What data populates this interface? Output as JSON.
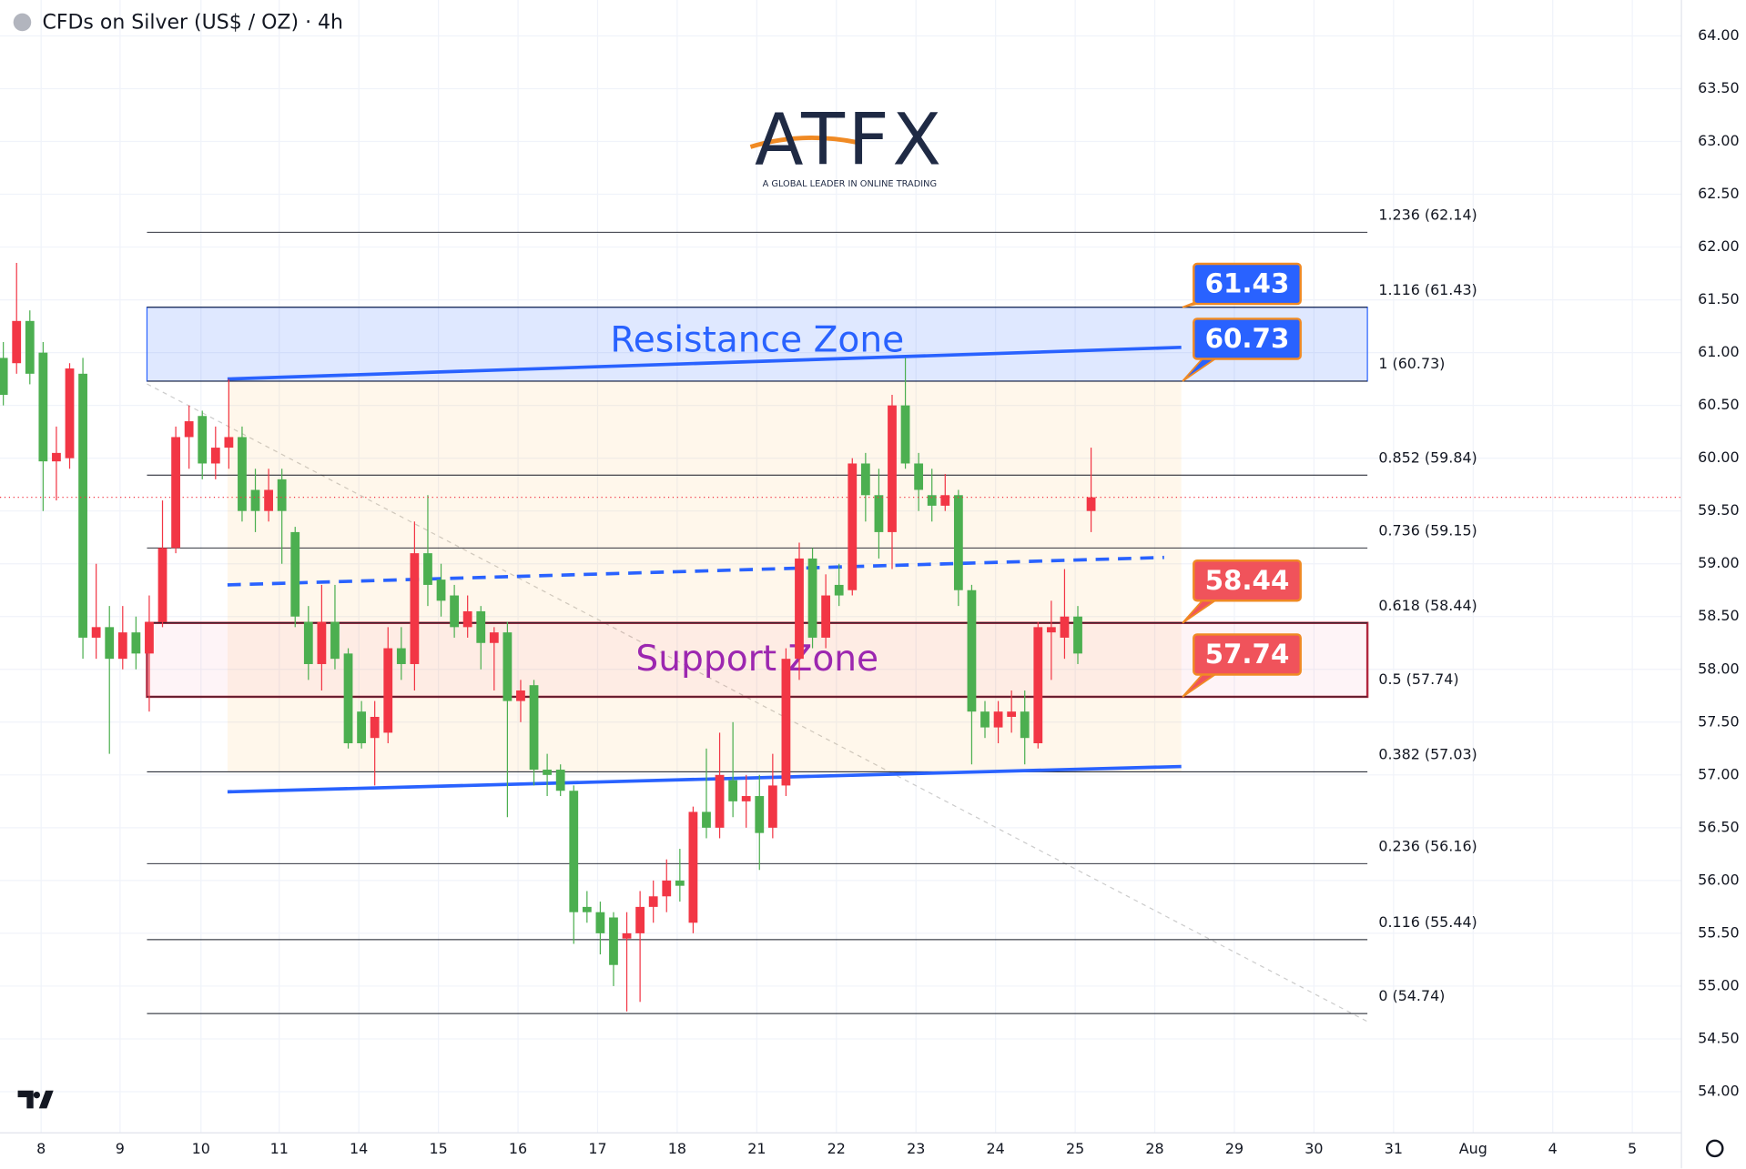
{
  "chart_data": {
    "type": "candlestick",
    "title": "CFDs on Silver (US$ / OZ) · 4h",
    "up_color": "#f23645",
    "down_color": "#4caf50",
    "open": [
      60.95,
      60.9,
      61.3,
      61.0,
      59.97,
      60.0,
      60.8,
      58.3,
      58.4,
      58.1,
      58.35,
      58.15,
      58.45,
      59.15,
      60.2,
      60.4,
      59.95,
      60.1,
      60.2,
      59.7,
      59.5,
      59.8,
      59.3,
      58.45,
      58.05,
      58.45,
      58.15,
      57.6,
      57.35,
      57.4,
      58.2,
      58.05,
      59.1,
      58.85,
      58.7,
      58.4,
      58.55,
      58.25,
      58.35,
      57.7,
      57.85,
      57.05,
      57.05,
      56.85,
      55.75,
      55.7,
      55.65,
      55.45,
      55.5,
      55.75,
      55.85,
      56.0,
      55.6,
      56.65,
      56.5,
      56.95,
      56.75,
      56.8,
      56.5,
      56.9,
      58.1,
      59.05,
      58.3,
      58.8,
      58.75,
      59.95,
      59.65,
      59.3,
      60.5,
      59.95,
      59.65,
      59.55,
      59.65,
      58.75,
      57.6,
      57.45,
      57.55,
      57.6,
      57.3,
      58.35,
      58.3,
      58.5,
      59.5
    ],
    "high": [
      61.1,
      61.85,
      61.4,
      61.1,
      60.3,
      60.9,
      60.95,
      59.0,
      58.6,
      58.6,
      58.5,
      58.7,
      59.6,
      60.3,
      60.5,
      60.45,
      60.3,
      60.75,
      60.3,
      59.9,
      59.9,
      59.9,
      59.35,
      58.6,
      58.8,
      58.8,
      58.2,
      57.7,
      57.7,
      58.4,
      58.4,
      59.4,
      59.65,
      59.0,
      58.8,
      58.7,
      58.6,
      58.4,
      58.45,
      57.9,
      57.9,
      57.2,
      57.1,
      56.9,
      55.9,
      55.8,
      55.7,
      55.7,
      55.9,
      56.0,
      56.2,
      56.3,
      56.7,
      57.25,
      57.4,
      57.5,
      57.0,
      57.0,
      57.2,
      58.2,
      59.2,
      59.15,
      58.9,
      59.0,
      60.0,
      60.05,
      59.9,
      60.6,
      60.95,
      60.05,
      59.9,
      59.85,
      59.7,
      58.8,
      57.7,
      57.7,
      57.8,
      57.8,
      58.45,
      58.65,
      58.95,
      58.6,
      60.1
    ],
    "low": [
      60.5,
      60.8,
      60.7,
      59.5,
      59.6,
      59.9,
      58.1,
      58.1,
      57.2,
      58.0,
      58.0,
      57.6,
      58.4,
      59.1,
      59.9,
      59.8,
      59.8,
      59.9,
      59.4,
      59.3,
      59.4,
      59.0,
      58.4,
      57.9,
      57.8,
      58.0,
      57.25,
      57.25,
      56.9,
      57.3,
      57.9,
      57.8,
      58.6,
      58.5,
      58.3,
      58.3,
      58.0,
      57.8,
      56.6,
      57.5,
      56.9,
      56.8,
      56.8,
      55.4,
      55.6,
      55.3,
      55.0,
      54.76,
      54.85,
      55.6,
      55.7,
      55.8,
      55.5,
      56.4,
      56.4,
      56.6,
      56.5,
      56.1,
      56.4,
      56.8,
      57.9,
      58.2,
      58.2,
      58.6,
      58.7,
      59.4,
      59.05,
      58.95,
      59.9,
      59.5,
      59.4,
      59.5,
      58.6,
      57.1,
      57.35,
      57.3,
      57.4,
      57.1,
      57.25,
      57.9,
      58.1,
      58.05,
      59.3
    ],
    "close": [
      60.6,
      61.3,
      60.8,
      59.97,
      60.05,
      60.85,
      58.3,
      58.4,
      58.1,
      58.35,
      58.15,
      58.45,
      59.15,
      60.2,
      60.35,
      59.95,
      60.1,
      60.2,
      59.5,
      59.5,
      59.7,
      59.5,
      58.5,
      58.05,
      58.45,
      58.1,
      57.3,
      57.3,
      57.55,
      58.2,
      58.05,
      59.1,
      58.8,
      58.65,
      58.4,
      58.55,
      58.25,
      58.35,
      57.7,
      57.8,
      57.05,
      57.0,
      56.85,
      55.7,
      55.7,
      55.5,
      55.2,
      55.5,
      55.75,
      55.85,
      56.0,
      55.95,
      56.65,
      56.5,
      57.0,
      56.75,
      56.8,
      56.45,
      56.9,
      58.1,
      59.05,
      58.3,
      58.7,
      58.7,
      59.95,
      59.65,
      59.3,
      60.5,
      59.95,
      59.7,
      59.55,
      59.65,
      58.75,
      57.6,
      57.45,
      57.6,
      57.6,
      57.35,
      58.4,
      58.4,
      58.5,
      58.15,
      59.63
    ],
    "ylim": [
      53.61,
      64.34
    ],
    "yticks": [
      {
        "value": 54,
        "label": "54.00"
      },
      {
        "value": 54.5,
        "label": "54.50"
      },
      {
        "value": 55,
        "label": "55.00"
      },
      {
        "value": 55.5,
        "label": "55.50"
      },
      {
        "value": 56,
        "label": "56.00"
      },
      {
        "value": 56.5,
        "label": "56.50"
      },
      {
        "value": 57,
        "label": "57.00"
      },
      {
        "value": 57.5,
        "label": "57.50"
      },
      {
        "value": 58,
        "label": "58.00"
      },
      {
        "value": 58.5,
        "label": "58.50"
      },
      {
        "value": 59,
        "label": "59.00"
      },
      {
        "value": 59.5,
        "label": "59.50"
      },
      {
        "value": 60,
        "label": "60.00"
      },
      {
        "value": 60.5,
        "label": "60.50"
      },
      {
        "value": 61,
        "label": "61.00"
      },
      {
        "value": 61.5,
        "label": "61.50"
      },
      {
        "value": 62,
        "label": "62.00"
      },
      {
        "value": 62.5,
        "label": "62.50"
      },
      {
        "value": 63,
        "label": "63.00"
      },
      {
        "value": 63.5,
        "label": "63.50"
      },
      {
        "value": 64,
        "label": "64.00"
      }
    ],
    "xlim": [
      -0.25,
      126.5
    ],
    "xticks": [
      {
        "value": 2.85,
        "label": "8"
      },
      {
        "value": 8.8,
        "label": "9"
      },
      {
        "value": 14.9,
        "label": "10"
      },
      {
        "value": 20.8,
        "label": "11"
      },
      {
        "value": 26.8,
        "label": "14"
      },
      {
        "value": 32.8,
        "label": "15"
      },
      {
        "value": 38.8,
        "label": "16"
      },
      {
        "value": 44.8,
        "label": "17"
      },
      {
        "value": 50.8,
        "label": "18"
      },
      {
        "value": 56.8,
        "label": "21"
      },
      {
        "value": 62.8,
        "label": "22"
      },
      {
        "value": 68.8,
        "label": "23"
      },
      {
        "value": 74.8,
        "label": "24"
      },
      {
        "value": 80.8,
        "label": "25"
      },
      {
        "value": 86.8,
        "label": "28"
      },
      {
        "value": 92.8,
        "label": "29"
      },
      {
        "value": 98.8,
        "label": "30"
      },
      {
        "value": 104.8,
        "label": "31"
      },
      {
        "value": 110.8,
        "label": "Aug"
      },
      {
        "value": 116.8,
        "label": "4"
      },
      {
        "value": 122.8,
        "label": "5"
      }
    ],
    "grid": true,
    "fib_levels": [
      {
        "label": "1.236 (62.14)",
        "value": 62.14
      },
      {
        "label": "1.116 (61.43)",
        "value": 61.43
      },
      {
        "label": "1 (60.73)",
        "value": 60.73
      },
      {
        "label": "0.852 (59.84)",
        "value": 59.84
      },
      {
        "label": "0.736 (59.15)",
        "value": 59.15
      },
      {
        "label": "0.618 (58.44)",
        "value": 58.44
      },
      {
        "label": "0.5 (57.74)",
        "value": 57.74
      },
      {
        "label": "0.382 (57.03)",
        "value": 57.03
      },
      {
        "label": "0.236 (56.16)",
        "value": 56.16
      },
      {
        "label": "0.116 (55.44)",
        "value": 55.44
      },
      {
        "label": "0 (54.74)",
        "value": 54.74
      }
    ],
    "zones": [
      {
        "name": "Resistance Zone",
        "color": "#2962ff",
        "fill": "rgba(41,98,255,0.15)",
        "text_color": "#2962ff",
        "values": [
          60.73,
          61.43
        ],
        "value_labels": [
          "60.73",
          "61.43"
        ]
      },
      {
        "name": "Support Zone",
        "color": "#b2283f",
        "fill": "rgba(233,30,99,0.05)",
        "text_color": "#9c27b0",
        "values": [
          57.74,
          58.44
        ],
        "value_labels": [
          "57.74",
          "58.44"
        ],
        "callout_color": "#f0535b"
      }
    ],
    "trendlines": [
      {
        "x": [
          16.9,
          88.8
        ],
        "y": [
          60.75,
          61.05
        ],
        "color": "#2962ff",
        "dashed": false
      },
      {
        "x": [
          16.9,
          87.5
        ],
        "y": [
          58.8,
          59.06
        ],
        "color": "#2962ff",
        "dashed": true
      },
      {
        "x": [
          16.9,
          88.8
        ],
        "y": [
          56.84,
          57.08
        ],
        "color": "#2962ff",
        "dashed": false
      }
    ]
  },
  "logo": {
    "title": "ATFX",
    "tagline": "A GLOBAL LEADER IN ONLINE TRADING"
  }
}
